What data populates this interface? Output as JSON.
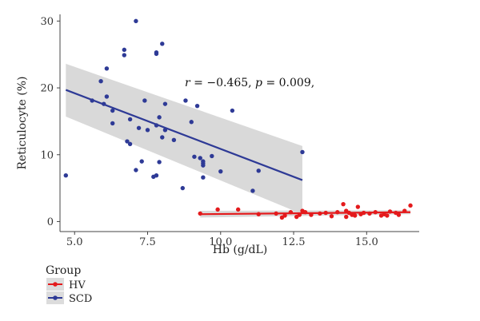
{
  "chart_data": {
    "type": "scatter",
    "xlabel": "Hb (g/dL)",
    "ylabel": "Reticulocyte (%)",
    "xlim": [
      4.5,
      16.8
    ],
    "ylim": [
      -1.5,
      31
    ],
    "xticks": [
      5.0,
      7.5,
      10.0,
      12.5,
      15.0
    ],
    "xtick_labels": [
      "5.0",
      "7.5",
      "10.0",
      "12.5",
      "15.0"
    ],
    "yticks": [
      0,
      10,
      20,
      30
    ],
    "ytick_labels": [
      "0",
      "10",
      "20",
      "30"
    ],
    "grid": false,
    "annotation": {
      "r_label": "r",
      "r_text": " = −0.465, ",
      "p_label": "p",
      "p_text": " = 0.009,"
    },
    "legend": {
      "title": "Group",
      "placement": "bottom-left",
      "items": [
        {
          "label": "HV",
          "color": "#e41a1c"
        },
        {
          "label": "SCD",
          "color": "#2e3a96"
        }
      ]
    },
    "series": [
      {
        "name": "HV",
        "color": "#e41a1c",
        "points": [
          [
            9.3,
            1.2
          ],
          [
            9.9,
            1.8
          ],
          [
            10.6,
            1.8
          ],
          [
            11.3,
            1.1
          ],
          [
            11.9,
            1.2
          ],
          [
            12.1,
            0.6
          ],
          [
            12.2,
            0.9
          ],
          [
            12.4,
            1.4
          ],
          [
            12.6,
            0.7
          ],
          [
            12.7,
            1.0
          ],
          [
            12.8,
            1.6
          ],
          [
            12.9,
            1.4
          ],
          [
            13.1,
            1.0
          ],
          [
            13.4,
            1.2
          ],
          [
            13.6,
            1.3
          ],
          [
            13.8,
            0.8
          ],
          [
            14.0,
            1.4
          ],
          [
            14.2,
            2.6
          ],
          [
            14.3,
            0.7
          ],
          [
            14.3,
            1.6
          ],
          [
            14.4,
            1.3
          ],
          [
            14.5,
            1.0
          ],
          [
            14.6,
            0.9
          ],
          [
            14.7,
            2.2
          ],
          [
            14.8,
            1.1
          ],
          [
            14.9,
            1.3
          ],
          [
            15.1,
            1.2
          ],
          [
            15.3,
            1.4
          ],
          [
            15.5,
            0.9
          ],
          [
            15.6,
            1.1
          ],
          [
            15.7,
            0.9
          ],
          [
            15.8,
            1.5
          ],
          [
            16.0,
            1.3
          ],
          [
            16.1,
            1.0
          ],
          [
            16.3,
            1.6
          ],
          [
            16.5,
            2.4
          ]
        ],
        "fit": {
          "x": [
            9.3,
            16.5
          ],
          "y": [
            1.1,
            1.4
          ]
        },
        "ci_upper": [
          1.6,
          1.7
        ],
        "ci_lower": [
          0.6,
          1.1
        ]
      },
      {
        "name": "SCD",
        "color": "#2e3a96",
        "points": [
          [
            4.7,
            6.9
          ],
          [
            5.6,
            18.1
          ],
          [
            5.9,
            21.0
          ],
          [
            6.0,
            17.6
          ],
          [
            6.1,
            18.7
          ],
          [
            6.1,
            22.9
          ],
          [
            6.3,
            16.6
          ],
          [
            6.3,
            14.7
          ],
          [
            6.7,
            25.7
          ],
          [
            6.7,
            24.9
          ],
          [
            6.8,
            12.0
          ],
          [
            6.9,
            11.6
          ],
          [
            6.9,
            15.3
          ],
          [
            7.1,
            30.0
          ],
          [
            7.1,
            7.7
          ],
          [
            7.2,
            14.0
          ],
          [
            7.3,
            9.0
          ],
          [
            7.4,
            18.1
          ],
          [
            7.5,
            13.7
          ],
          [
            7.7,
            6.7
          ],
          [
            7.8,
            25.1
          ],
          [
            7.8,
            25.3
          ],
          [
            7.8,
            6.9
          ],
          [
            7.8,
            14.4
          ],
          [
            7.9,
            8.9
          ],
          [
            7.9,
            15.6
          ],
          [
            8.0,
            26.6
          ],
          [
            8.0,
            12.6
          ],
          [
            8.1,
            17.6
          ],
          [
            8.1,
            13.7
          ],
          [
            8.4,
            12.2
          ],
          [
            8.7,
            5.0
          ],
          [
            8.8,
            18.1
          ],
          [
            9.0,
            14.9
          ],
          [
            9.1,
            9.7
          ],
          [
            9.2,
            17.3
          ],
          [
            9.3,
            9.5
          ],
          [
            9.4,
            8.4
          ],
          [
            9.4,
            8.7
          ],
          [
            9.4,
            6.6
          ],
          [
            9.4,
            9.0
          ],
          [
            9.7,
            9.8
          ],
          [
            10.0,
            7.5
          ],
          [
            10.4,
            16.6
          ],
          [
            11.1,
            4.6
          ],
          [
            11.3,
            7.6
          ],
          [
            12.8,
            10.4
          ]
        ],
        "fit": {
          "x": [
            4.7,
            12.8
          ],
          "y": [
            19.7,
            6.2
          ]
        },
        "ci_upper": [
          23.6,
          11.3
        ],
        "ci_lower": [
          15.7,
          1.1
        ]
      }
    ]
  }
}
